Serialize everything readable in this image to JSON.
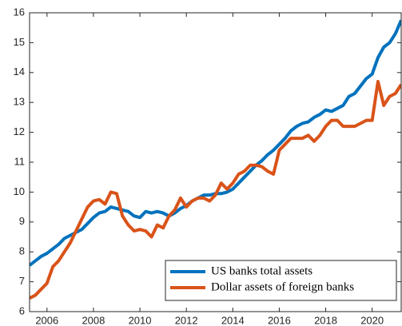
{
  "chart_data": {
    "type": "line",
    "x": [
      2005.25,
      2005.5,
      2005.75,
      2006,
      2006.25,
      2006.5,
      2006.75,
      2007,
      2007.25,
      2007.5,
      2007.75,
      2008,
      2008.25,
      2008.5,
      2008.75,
      2009,
      2009.25,
      2009.5,
      2009.75,
      2010,
      2010.25,
      2010.5,
      2010.75,
      2011,
      2011.25,
      2011.5,
      2011.75,
      2012,
      2012.25,
      2012.5,
      2012.75,
      2013,
      2013.25,
      2013.5,
      2013.75,
      2014,
      2014.25,
      2014.5,
      2014.75,
      2015,
      2015.25,
      2015.5,
      2015.75,
      2016,
      2016.25,
      2016.5,
      2016.75,
      2017,
      2017.25,
      2017.5,
      2017.75,
      2018,
      2018.25,
      2018.5,
      2018.75,
      2019,
      2019.25,
      2019.5,
      2019.75,
      2020,
      2020.25,
      2020.5,
      2020.75,
      2021,
      2021.25
    ],
    "series": [
      {
        "name": "US banks total assets",
        "color": "#0072BD",
        "values": [
          7.55,
          7.7,
          7.85,
          7.95,
          8.1,
          8.25,
          8.45,
          8.55,
          8.65,
          8.75,
          8.95,
          9.15,
          9.3,
          9.35,
          9.5,
          9.45,
          9.4,
          9.35,
          9.2,
          9.15,
          9.35,
          9.3,
          9.35,
          9.3,
          9.2,
          9.3,
          9.45,
          9.55,
          9.7,
          9.8,
          9.9,
          9.9,
          9.95,
          9.95,
          10.0,
          10.1,
          10.3,
          10.5,
          10.7,
          10.9,
          11.05,
          11.25,
          11.4,
          11.6,
          11.8,
          12.05,
          12.2,
          12.3,
          12.35,
          12.5,
          12.6,
          12.75,
          12.7,
          12.8,
          12.9,
          13.2,
          13.3,
          13.55,
          13.8,
          13.95,
          14.5,
          14.85,
          15.0,
          15.3,
          15.75
        ]
      },
      {
        "name": "Dollar assets of foreign banks",
        "color": "#D95319",
        "values": [
          6.45,
          6.55,
          6.75,
          6.95,
          7.5,
          7.7,
          8.0,
          8.3,
          8.7,
          9.1,
          9.5,
          9.7,
          9.75,
          9.6,
          10.0,
          9.95,
          9.2,
          8.9,
          8.7,
          8.75,
          8.7,
          8.5,
          8.9,
          8.8,
          9.2,
          9.4,
          9.8,
          9.5,
          9.7,
          9.8,
          9.8,
          9.7,
          9.9,
          10.3,
          10.1,
          10.3,
          10.6,
          10.7,
          10.9,
          10.9,
          10.85,
          10.7,
          10.6,
          11.4,
          11.6,
          11.8,
          11.8,
          11.8,
          11.9,
          11.7,
          11.9,
          12.2,
          12.4,
          12.4,
          12.2,
          12.2,
          12.2,
          12.3,
          12.4,
          12.4,
          13.7,
          12.9,
          13.2,
          13.3,
          13.6
        ]
      }
    ],
    "xlim": [
      2005.25,
      2021.25
    ],
    "xticks": [
      2006,
      2008,
      2010,
      2012,
      2014,
      2016,
      2018,
      2020
    ],
    "ylim": [
      6,
      16
    ],
    "yticks": [
      6,
      7,
      8,
      9,
      10,
      11,
      12,
      13,
      14,
      15,
      16
    ],
    "grid": false,
    "legend": "lower right"
  }
}
